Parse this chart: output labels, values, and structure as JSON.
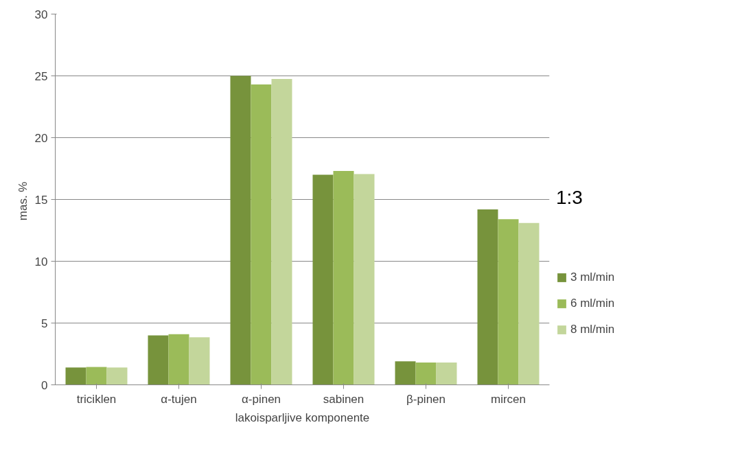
{
  "chart_data": {
    "type": "bar",
    "xlabel": "lakoisparljive komponente",
    "ylabel": "mas.  %",
    "annotations": [
      "1:3"
    ],
    "categories": [
      "triciklen",
      "α-tujen",
      "α-pinen",
      "sabinen",
      "β-pinen",
      "mircen"
    ],
    "series": [
      {
        "name": "3 ml/min",
        "color": "#77933c",
        "values": [
          1.4,
          4.0,
          25.0,
          17.0,
          1.9,
          14.2
        ]
      },
      {
        "name": "6 ml/min",
        "color": "#9bbb59",
        "values": [
          1.45,
          4.1,
          24.3,
          17.3,
          1.8,
          13.4
        ]
      },
      {
        "name": "8 ml/min",
        "color": "#c3d69b",
        "values": [
          1.4,
          3.85,
          24.75,
          17.05,
          1.8,
          13.1
        ]
      }
    ],
    "ylim": [
      0,
      30
    ],
    "yticks": [
      0,
      5,
      10,
      15,
      20,
      25,
      30
    ],
    "grid": "y",
    "legend": "right"
  }
}
